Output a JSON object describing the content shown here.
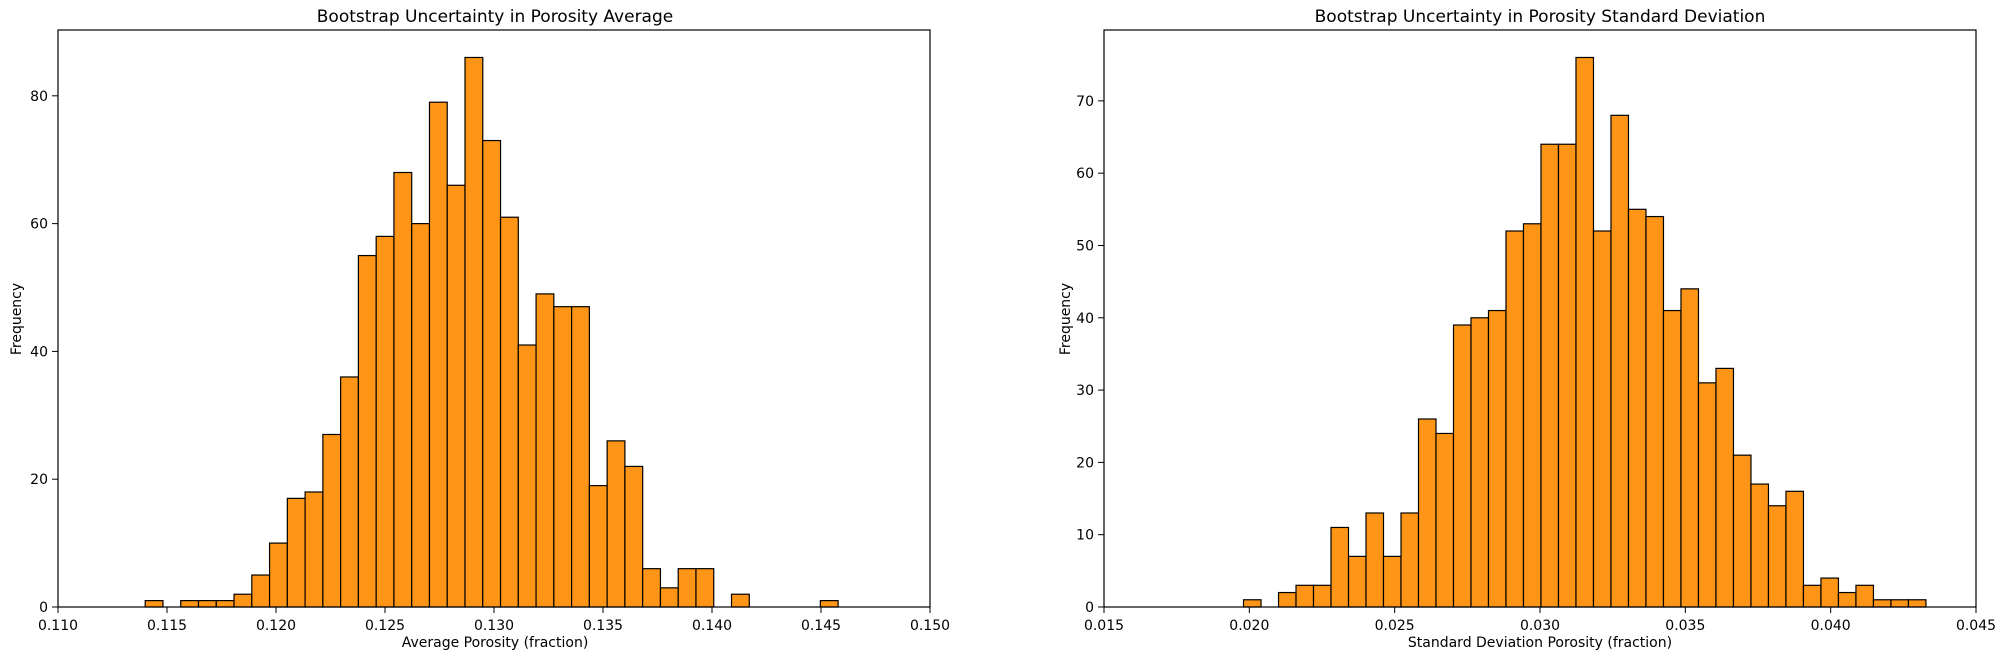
{
  "chart_data": [
    {
      "type": "bar",
      "title": "Bootstrap Uncertainty in Porosity Average",
      "xlabel": "Average Porosity (fraction)",
      "ylabel": "Frequency",
      "xlim": [
        0.11,
        0.15
      ],
      "ylim": [
        0,
        90.3
      ],
      "xticks": [
        "0.110",
        "0.115",
        "0.120",
        "0.125",
        "0.130",
        "0.135",
        "0.140",
        "0.145",
        "0.150"
      ],
      "yticks": [
        "0",
        "20",
        "40",
        "60",
        "80"
      ],
      "bin_start": 0.114,
      "bin_width": 0.000815,
      "values": [
        1,
        0,
        1,
        1,
        1,
        2,
        5,
        10,
        17,
        18,
        27,
        36,
        55,
        58,
        68,
        60,
        79,
        66,
        86,
        73,
        61,
        41,
        49,
        47,
        47,
        19,
        26,
        22,
        6,
        3,
        6,
        6,
        0,
        2,
        0,
        0,
        0,
        0,
        1
      ],
      "color": "#ff9516",
      "edgecolor": "#000000",
      "grid": false
    },
    {
      "type": "bar",
      "title": "Bootstrap Uncertainty in Porosity Standard Deviation",
      "xlabel": "Standard Deviation Porosity (fraction)",
      "ylabel": "Frequency",
      "xlim": [
        0.015,
        0.045
      ],
      "ylim": [
        0,
        79.8
      ],
      "xticks": [
        "0.015",
        "0.020",
        "0.025",
        "0.030",
        "0.035",
        "0.040",
        "0.045"
      ],
      "yticks": [
        "0",
        "10",
        "20",
        "30",
        "40",
        "50",
        "60",
        "70"
      ],
      "bin_start": 0.0198,
      "bin_width": 0.000602,
      "values": [
        1,
        0,
        2,
        3,
        3,
        11,
        7,
        13,
        7,
        13,
        26,
        24,
        39,
        40,
        41,
        52,
        53,
        64,
        64,
        76,
        52,
        68,
        55,
        54,
        41,
        44,
        31,
        33,
        21,
        17,
        14,
        16,
        3,
        4,
        2,
        3,
        1,
        1,
        1
      ],
      "color": "#ff9516",
      "edgecolor": "#000000",
      "grid": false
    }
  ]
}
